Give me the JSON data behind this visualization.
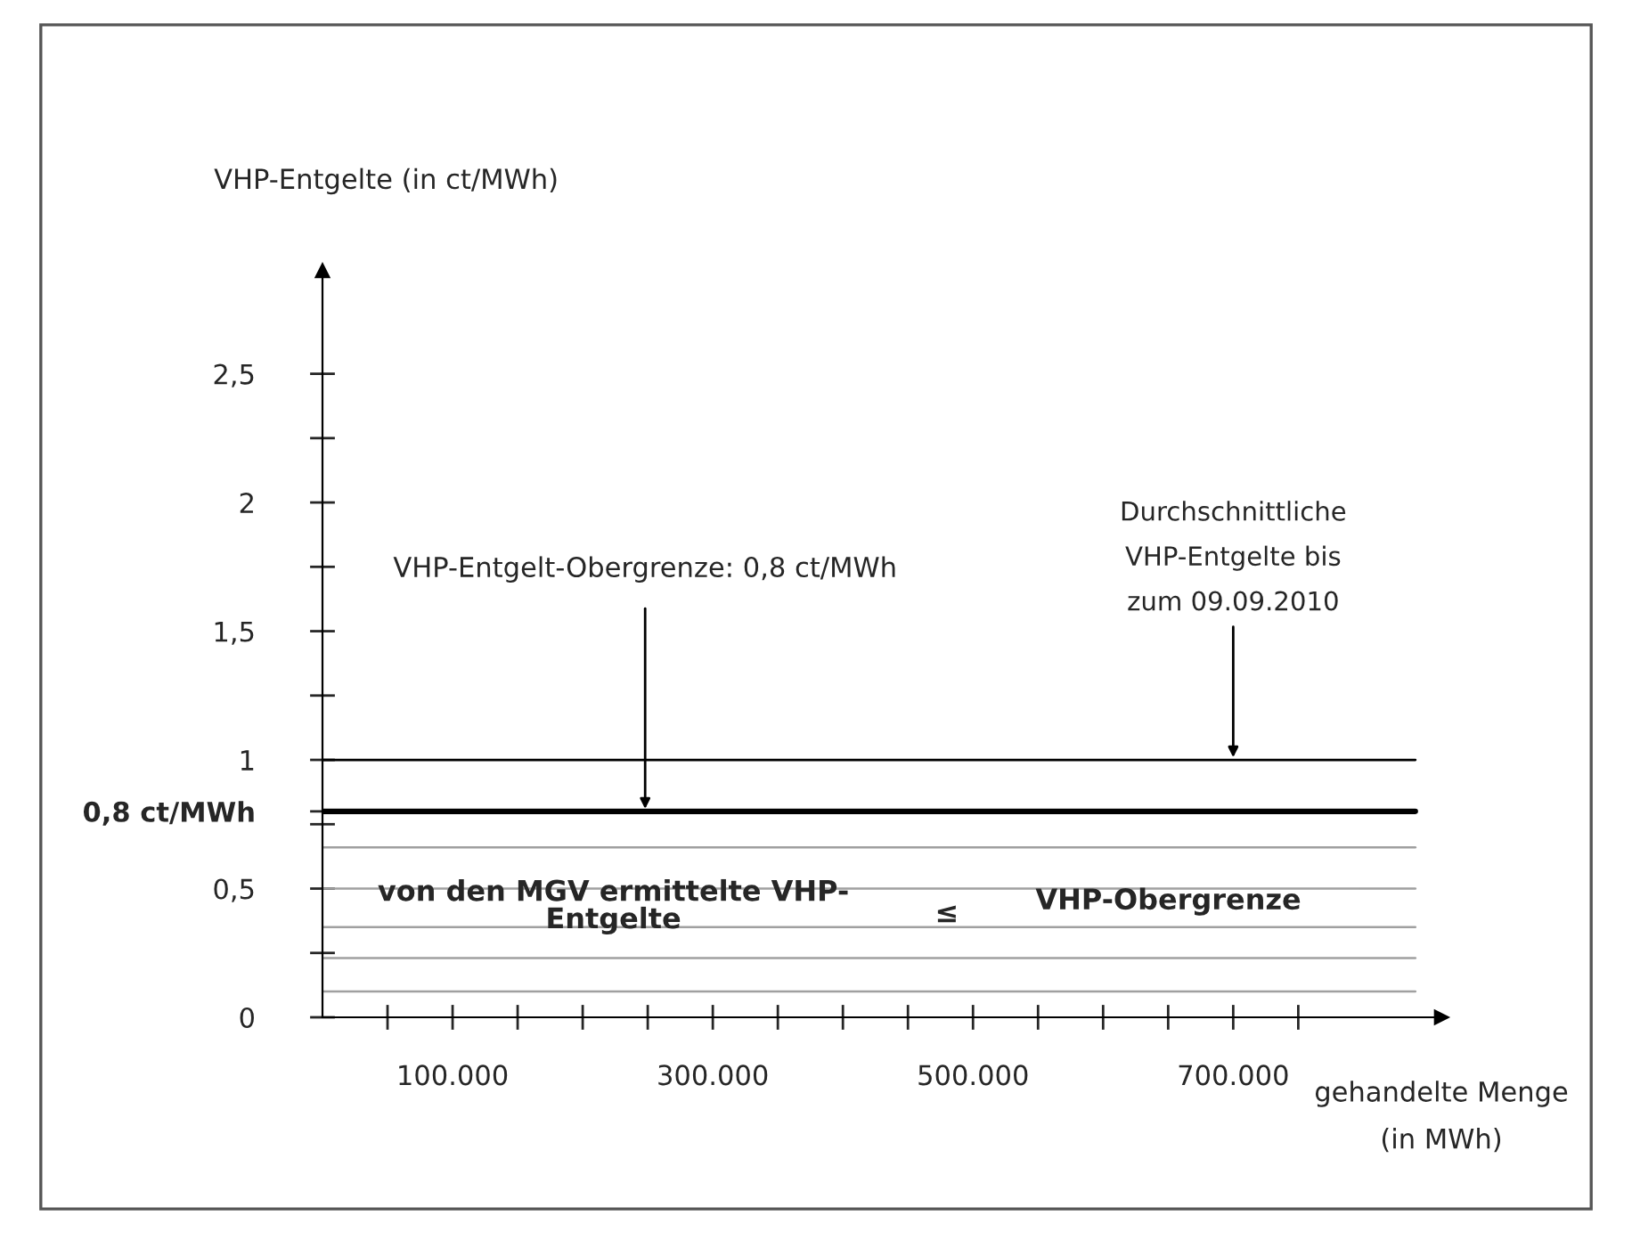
{
  "chart_data": {
    "type": "line",
    "ylabel": "VHP-Entgelte (in ct/MWh)",
    "xlabel": "gehandelte Menge\n(in MWh)",
    "xlim": [
      0,
      860000
    ],
    "ylim": [
      0,
      2.9
    ],
    "xticks": [
      {
        "value": 50000,
        "label": null
      },
      {
        "value": 100000,
        "label": "100.000"
      },
      {
        "value": 150000,
        "label": null
      },
      {
        "value": 200000,
        "label": null
      },
      {
        "value": 250000,
        "label": null
      },
      {
        "value": 300000,
        "label": "300.000"
      },
      {
        "value": 350000,
        "label": null
      },
      {
        "value": 400000,
        "label": null
      },
      {
        "value": 450000,
        "label": null
      },
      {
        "value": 500000,
        "label": "500.000"
      },
      {
        "value": 550000,
        "label": null
      },
      {
        "value": 600000,
        "label": null
      },
      {
        "value": 650000,
        "label": null
      },
      {
        "value": 700000,
        "label": "700.000"
      },
      {
        "value": 750000,
        "label": null
      }
    ],
    "yticks": [
      {
        "value": 0,
        "label": "0"
      },
      {
        "value": 0.25,
        "label": null
      },
      {
        "value": 0.5,
        "label": "0,5"
      },
      {
        "value": 0.75,
        "label": null
      },
      {
        "value": 0.8,
        "label": "0,8 ct/MWh"
      },
      {
        "value": 1,
        "label": "1"
      },
      {
        "value": 1.25,
        "label": null
      },
      {
        "value": 1.5,
        "label": "1,5"
      },
      {
        "value": 1.75,
        "label": null
      },
      {
        "value": 2,
        "label": "2"
      },
      {
        "value": 2.25,
        "label": null
      },
      {
        "value": 2.5,
        "label": "2,5"
      }
    ],
    "x": [
      0,
      840000
    ],
    "series": [
      {
        "color": "#000000",
        "values": [
          1,
          1
        ]
      },
      {
        "color": "#000000",
        "values": [
          0.8,
          0.8
        ]
      },
      {
        "color": "#a0a0a0",
        "values": [
          0.66,
          0.66
        ]
      },
      {
        "color": "#a0a0a0",
        "values": [
          0.5,
          0.5
        ]
      },
      {
        "color": "#a0a0a0",
        "values": [
          0.35,
          0.35
        ]
      },
      {
        "color": "#a0a0a0",
        "values": [
          0.23,
          0.23
        ]
      },
      {
        "color": "#a0a0a0",
        "values": [
          0.1,
          0.1
        ]
      }
    ],
    "annotations": [
      {
        "text": "VHP-Entgelt-Obergrenze: 0,8 ct/MWh",
        "x": 248000,
        "y": 0.8
      },
      {
        "text": "Durchschnittliche\nVHP-Entgelte bis\nzum 09.09.2010",
        "x": 700000,
        "y": 1
      },
      "von den MGV ermittelte VHP-\nEntgelte",
      "≤",
      "VHP-Obergrenze"
    ]
  }
}
